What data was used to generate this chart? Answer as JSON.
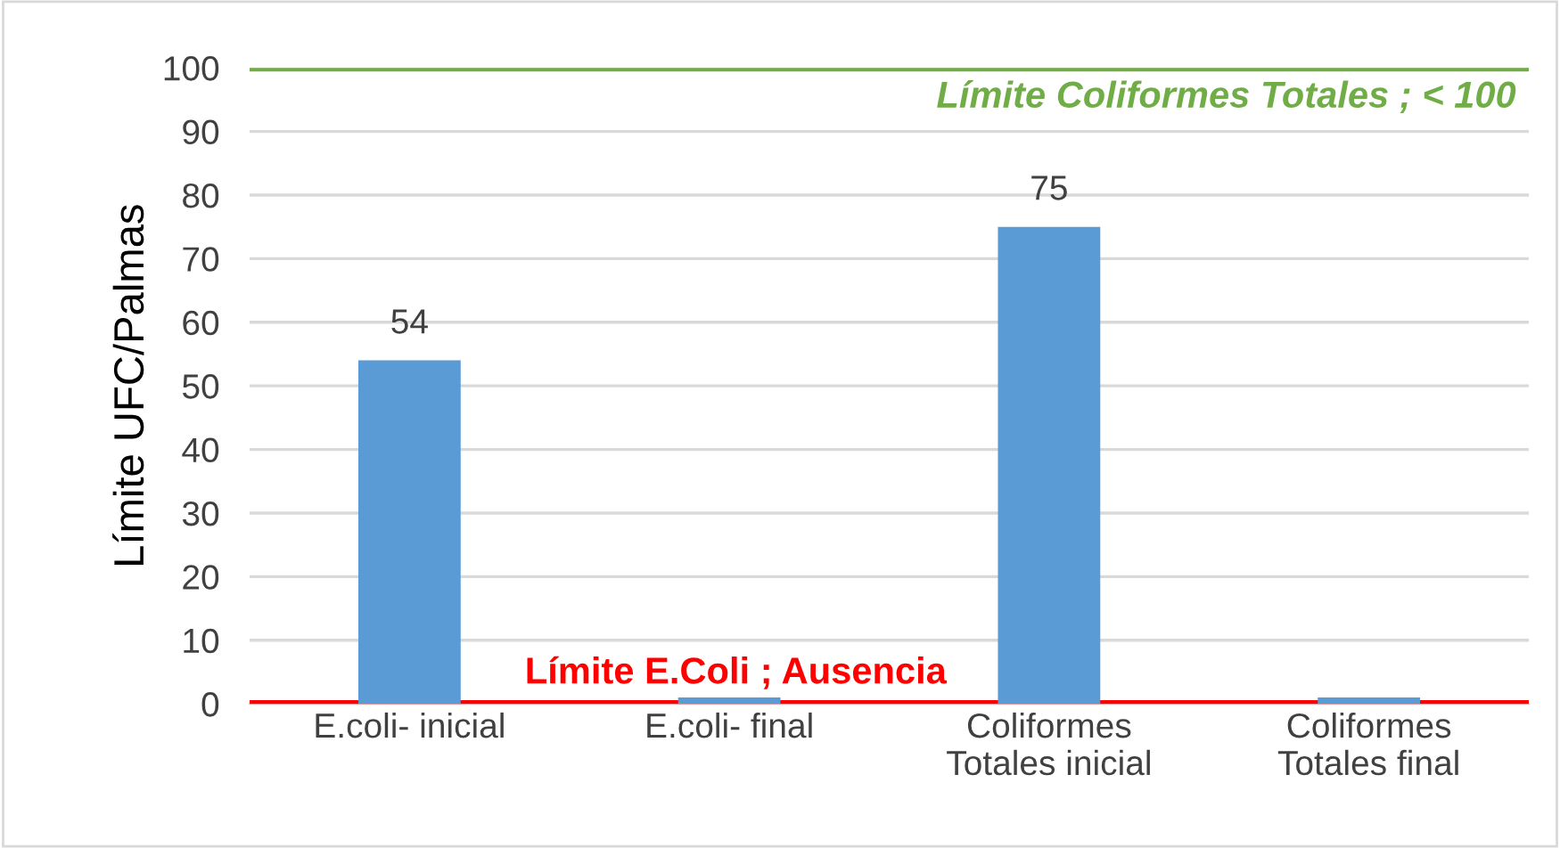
{
  "chart_data": {
    "type": "bar",
    "ylabel": "Límite UFC/Palmas",
    "categories": [
      "E.coli- inicial",
      "E.coli- final",
      "Coliformes\nTotales inicial",
      "Coliformes\nTotales final"
    ],
    "values": [
      54,
      1,
      75,
      1
    ],
    "color": "#5b9bd5",
    "value_labels": [
      "54",
      null,
      "75",
      null
    ],
    "ylim": [
      0,
      100
    ],
    "yticks": [
      0,
      10,
      20,
      30,
      40,
      50,
      60,
      70,
      80,
      90,
      100
    ],
    "grid": "y",
    "ref_lines": [
      {
        "axis": "y",
        "value": 0,
        "label": "Límite E.Coli ; Ausencia",
        "color": "#ff0000"
      },
      {
        "axis": "y",
        "value": 100,
        "label": "Límite Coliformes Totales ; < 100",
        "color": "#70ad47"
      }
    ]
  }
}
